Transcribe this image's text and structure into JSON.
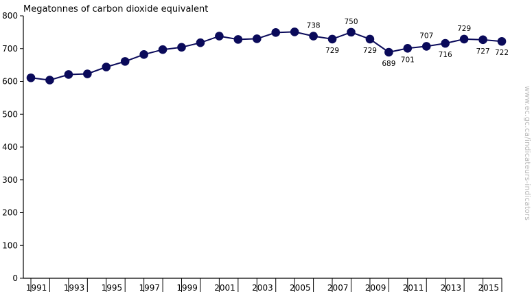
{
  "chart_data": {
    "type": "line",
    "title": "Megatonnes of carbon dioxide equivalent",
    "ylim": [
      0,
      800
    ],
    "yticks": [
      0,
      100,
      200,
      300,
      400,
      500,
      600,
      700,
      800
    ],
    "xlim": [
      1990,
      2015
    ],
    "xtick_labels": [
      "1991",
      "1993",
      "1995",
      "1997",
      "1999",
      "2001",
      "2003",
      "2005",
      "2007",
      "2009",
      "2011",
      "2013",
      "2015"
    ],
    "x": [
      1990,
      1991,
      1992,
      1993,
      1994,
      1995,
      1996,
      1997,
      1998,
      1999,
      2000,
      2001,
      2002,
      2003,
      2004,
      2005,
      2006,
      2007,
      2008,
      2009,
      2010,
      2011,
      2012,
      2013,
      2014,
      2015
    ],
    "values": [
      611,
      604,
      621,
      623,
      644,
      661,
      682,
      697,
      704,
      718,
      738,
      728,
      730,
      749,
      751,
      738,
      729,
      750,
      729,
      689,
      701,
      707,
      716,
      729,
      727,
      722
    ],
    "labels": [
      {
        "year": 2005,
        "text": "738"
      },
      {
        "year": 2006,
        "text": "729"
      },
      {
        "year": 2007,
        "text": "750"
      },
      {
        "year": 2008,
        "text": "729"
      },
      {
        "year": 2009,
        "text": "689"
      },
      {
        "year": 2010,
        "text": "701"
      },
      {
        "year": 2011,
        "text": "707"
      },
      {
        "year": 2012,
        "text": "716"
      },
      {
        "year": 2013,
        "text": "729"
      },
      {
        "year": 2014,
        "text": "727"
      },
      {
        "year": 2015,
        "text": "722"
      }
    ],
    "series_color": "#0a0a5a",
    "axis_color": "#000000",
    "grid": false
  },
  "side_text": "www.ec.gc.ca/indicateurs-indicators"
}
